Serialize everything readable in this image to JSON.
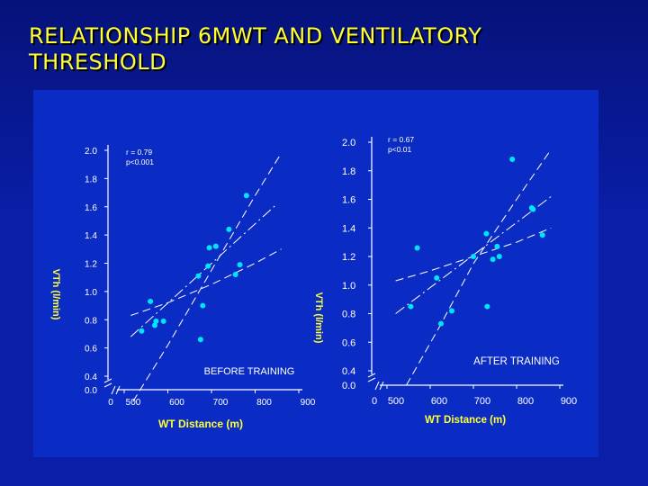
{
  "title_lines": [
    "RELATIONSHIP 6MWT AND VENTILATORY",
    "THRESHOLD"
  ],
  "colors": {
    "background": "#0a1ea8",
    "panel": "#0b2cc4",
    "title": "#ffff33",
    "axis_label": "#ffff33",
    "points": "#00e5ff",
    "lines": "#ffffff",
    "text": "#ffffff"
  },
  "chart_data": [
    {
      "type": "scatter",
      "panel": "left",
      "annotation": "BEFORE TRAINING",
      "stats": [
        "r = 0.79",
        "p<0.001"
      ],
      "xlabel": "WT Distance (m)",
      "ylabel": "VTh (l/min)",
      "xlim": [
        400,
        900
      ],
      "ylim": [
        0.0,
        2.0
      ],
      "x_break": true,
      "y_break": true,
      "x_ticks": [
        500,
        600,
        700,
        800,
        900
      ],
      "x_tick_labels": [
        "0",
        "500",
        "600",
        "700",
        "800",
        "900"
      ],
      "y_ticks": [
        0.4,
        0.6,
        0.8,
        1.0,
        1.2,
        1.4,
        1.6,
        1.8,
        2.0
      ],
      "y_tick_labels": [
        "0.0",
        "0.4",
        "0.6",
        "0.8",
        "1.0",
        "1.2",
        "1.4",
        "1.6",
        "1.8",
        "2.0"
      ],
      "points": [
        {
          "x": 540,
          "y": 0.72
        },
        {
          "x": 560,
          "y": 0.93
        },
        {
          "x": 570,
          "y": 0.76
        },
        {
          "x": 573,
          "y": 0.79
        },
        {
          "x": 590,
          "y": 0.79
        },
        {
          "x": 675,
          "y": 0.66
        },
        {
          "x": 680,
          "y": 0.9
        },
        {
          "x": 670,
          "y": 1.11
        },
        {
          "x": 692,
          "y": 1.18
        },
        {
          "x": 695,
          "y": 1.31
        },
        {
          "x": 710,
          "y": 1.32
        },
        {
          "x": 740,
          "y": 1.44
        },
        {
          "x": 755,
          "y": 1.12
        },
        {
          "x": 765,
          "y": 1.19
        },
        {
          "x": 780,
          "y": 1.68
        }
      ],
      "fit_line": [
        {
          "x": 515,
          "y": 0.68
        },
        {
          "x": 850,
          "y": 1.62
        }
      ],
      "upper_band": [
        {
          "x": 520,
          "y": 0.22
        },
        {
          "x": 600,
          "y": 0.62
        },
        {
          "x": 700,
          "y": 1.15
        },
        {
          "x": 800,
          "y": 1.68
        },
        {
          "x": 860,
          "y": 1.98
        }
      ],
      "lower_band": [
        {
          "x": 515,
          "y": 0.83
        },
        {
          "x": 600,
          "y": 0.92
        },
        {
          "x": 700,
          "y": 1.05
        },
        {
          "x": 800,
          "y": 1.2
        },
        {
          "x": 860,
          "y": 1.3
        }
      ]
    },
    {
      "type": "scatter",
      "panel": "right",
      "annotation": "AFTER TRAINING",
      "stats": [
        "r = 0.67",
        "p<0.01"
      ],
      "xlabel": "WT Distance (m)",
      "ylabel": "VTh (l/min)",
      "xlim": [
        400,
        900
      ],
      "ylim": [
        0.0,
        2.0
      ],
      "x_break": true,
      "y_break": true,
      "x_ticks": [
        500,
        600,
        700,
        800,
        900
      ],
      "x_tick_labels": [
        "0",
        "500",
        "600",
        "700",
        "800",
        "900"
      ],
      "y_ticks": [
        0.4,
        0.6,
        0.8,
        1.0,
        1.2,
        1.4,
        1.6,
        1.8,
        2.0
      ],
      "y_tick_labels": [
        "0.0",
        "0.4",
        "0.6",
        "0.8",
        "1.0",
        "1.2",
        "1.4",
        "1.6",
        "1.8",
        "2.0"
      ],
      "points": [
        {
          "x": 555,
          "y": 0.85
        },
        {
          "x": 570,
          "y": 1.26
        },
        {
          "x": 615,
          "y": 1.05
        },
        {
          "x": 625,
          "y": 0.73
        },
        {
          "x": 650,
          "y": 0.82
        },
        {
          "x": 700,
          "y": 1.2
        },
        {
          "x": 730,
          "y": 1.36
        },
        {
          "x": 732,
          "y": 0.85
        },
        {
          "x": 745,
          "y": 1.18
        },
        {
          "x": 755,
          "y": 1.27
        },
        {
          "x": 760,
          "y": 1.2
        },
        {
          "x": 790,
          "y": 1.88
        },
        {
          "x": 835,
          "y": 1.54
        },
        {
          "x": 838,
          "y": 1.53
        },
        {
          "x": 860,
          "y": 1.35
        }
      ],
      "fit_line": [
        {
          "x": 520,
          "y": 0.8
        },
        {
          "x": 880,
          "y": 1.62
        }
      ],
      "upper_band": [
        {
          "x": 545,
          "y": 0.3
        },
        {
          "x": 620,
          "y": 0.7
        },
        {
          "x": 700,
          "y": 1.15
        },
        {
          "x": 800,
          "y": 1.6
        },
        {
          "x": 880,
          "y": 1.95
        }
      ],
      "lower_band": [
        {
          "x": 520,
          "y": 1.03
        },
        {
          "x": 600,
          "y": 1.1
        },
        {
          "x": 700,
          "y": 1.2
        },
        {
          "x": 800,
          "y": 1.3
        },
        {
          "x": 880,
          "y": 1.4
        }
      ]
    }
  ]
}
